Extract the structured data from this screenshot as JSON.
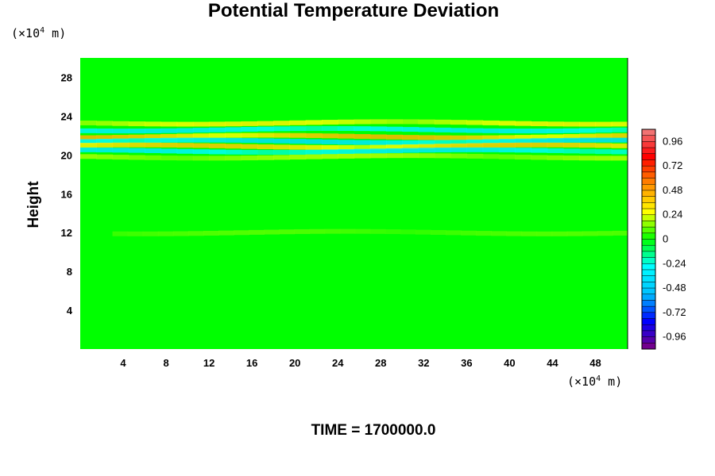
{
  "chart_data": {
    "type": "heatmap",
    "title": "Potential Temperature Deviation",
    "ylabel": "Height",
    "xlabel": "",
    "x_unit": {
      "prefix": "(×10",
      "exp": "4",
      "suffix": " m)"
    },
    "y_unit": {
      "prefix": "(×10",
      "exp": "4",
      "suffix": " m)"
    },
    "x_ticks": [
      4,
      8,
      12,
      16,
      20,
      24,
      28,
      32,
      36,
      40,
      44,
      48
    ],
    "y_ticks": [
      4,
      8,
      12,
      16,
      20,
      24,
      28
    ],
    "xlim": [
      0,
      51
    ],
    "ylim": [
      0,
      30
    ],
    "colorbar": {
      "ticks": [
        "0.96",
        "0.72",
        "0.48",
        "0.24",
        "0",
        "-0.24",
        "-0.48",
        "-0.72",
        "-0.96"
      ],
      "range": [
        -1.08,
        1.08
      ],
      "colors_top_to_bottom": [
        "#f08080",
        "#ff0000",
        "#ff8c00",
        "#ffff00",
        "#00ff00",
        "#00ffff",
        "#00bfff",
        "#0000ff",
        "#800080"
      ]
    },
    "background_value": 0.0,
    "features": [
      {
        "description": "wave band",
        "y": 23.3,
        "amplitude": 0.3,
        "x_range": [
          0,
          51
        ]
      },
      {
        "description": "wave band",
        "y": 22.6,
        "amplitude": -0.35,
        "x_range": [
          0,
          51
        ]
      },
      {
        "description": "wave band",
        "y": 21.9,
        "amplitude": 0.45,
        "x_range": [
          0,
          51
        ]
      },
      {
        "description": "wave band",
        "y": 21.4,
        "amplitude": -0.4,
        "x_range": [
          0,
          51
        ]
      },
      {
        "description": "wave band",
        "y": 20.9,
        "amplitude": 0.4,
        "x_range": [
          0,
          51
        ]
      },
      {
        "description": "wave band",
        "y": 20.4,
        "amplitude": -0.35,
        "x_range": [
          0,
          51
        ]
      },
      {
        "description": "wave band",
        "y": 19.8,
        "amplitude": 0.2,
        "x_range": [
          0,
          51
        ]
      },
      {
        "description": "weak band",
        "y": 12.0,
        "amplitude": 0.1,
        "x_range": [
          3,
          51
        ]
      }
    ]
  },
  "footer": {
    "time_label": "TIME = 1700000.0"
  }
}
